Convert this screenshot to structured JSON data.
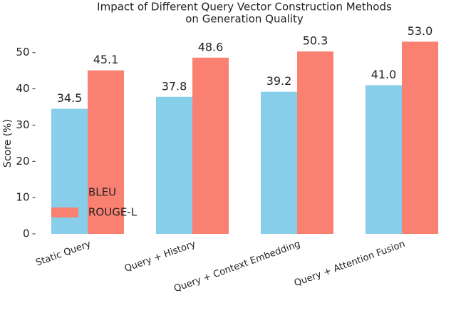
{
  "chart_data": {
    "type": "bar",
    "title": [
      "Impact of Different Query Vector Construction Methods",
      "on Generation Quality"
    ],
    "y_label": "Score (%)",
    "categories": [
      "Static Query",
      "Query + History",
      "Query + Context Embedding",
      "Query + Attention Fusion"
    ],
    "series": [
      {
        "name": "BLEU",
        "color": "#87ceeb",
        "values": [
          34.5,
          37.8,
          39.2,
          41.0
        ],
        "value_labels": [
          "34.5",
          "37.8",
          "39.2",
          "41.0"
        ]
      },
      {
        "name": "ROUGE-L",
        "color": "#fa8072",
        "values": [
          45.1,
          48.6,
          50.3,
          53.0
        ],
        "value_labels": [
          "45.1",
          "48.6",
          "50.3",
          "53.0"
        ]
      }
    ],
    "ylim": [
      0,
      55.65
    ],
    "yticks": [
      0,
      10,
      20,
      30,
      40,
      50
    ],
    "grid": false,
    "legend": "center left"
  }
}
